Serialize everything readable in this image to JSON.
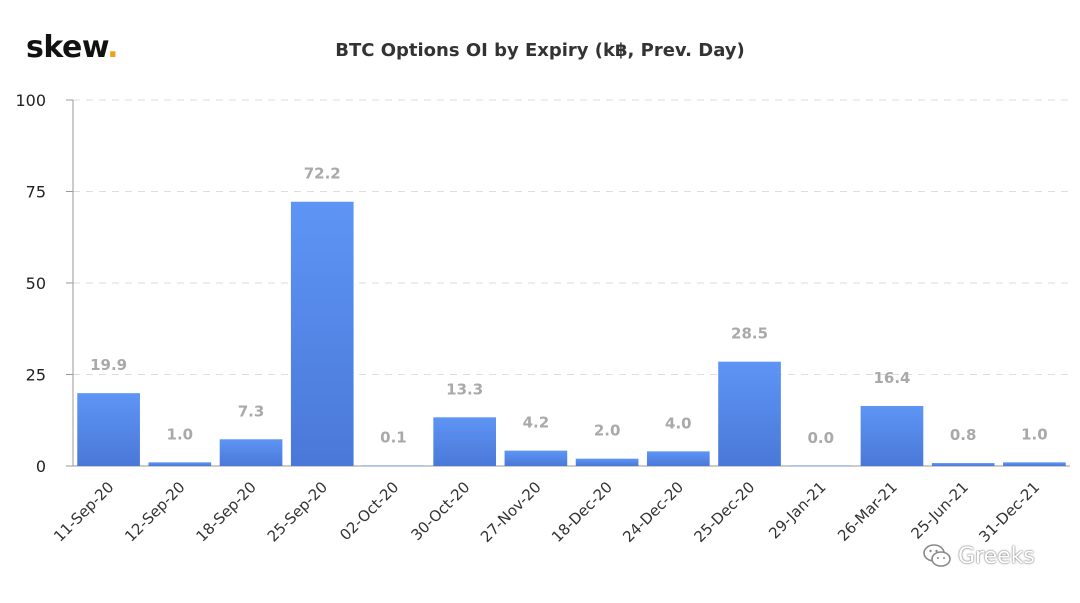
{
  "brand": {
    "name": "skew",
    "dot": ".",
    "accent": "#f0a01c"
  },
  "watermark": {
    "text": "Greeks",
    "icon": "wechat-icon"
  },
  "chart_data": {
    "type": "bar",
    "title": "BTC Options OI by Expiry (k฿, Prev. Day)",
    "xlabel": "",
    "ylabel": "",
    "ylim": [
      0,
      100
    ],
    "yticks": [
      0,
      25,
      50,
      75,
      100
    ],
    "grid": true,
    "bar_color": "#5b8ef0",
    "categories": [
      "11-Sep-20",
      "12-Sep-20",
      "18-Sep-20",
      "25-Sep-20",
      "02-Oct-20",
      "30-Oct-20",
      "27-Nov-20",
      "18-Dec-20",
      "24-Dec-20",
      "25-Dec-20",
      "29-Jan-21",
      "26-Mar-21",
      "25-Jun-21",
      "31-Dec-21"
    ],
    "values": [
      19.9,
      1.0,
      7.3,
      72.2,
      0.1,
      13.3,
      4.2,
      2.0,
      4.0,
      28.5,
      0.0,
      16.4,
      0.8,
      1.0
    ],
    "value_labels": [
      "19.9",
      "1.0",
      "7.3",
      "72.2",
      "0.1",
      "13.3",
      "4.2",
      "2.0",
      "4.0",
      "28.5",
      "0.0",
      "16.4",
      "0.8",
      "1.0"
    ]
  }
}
